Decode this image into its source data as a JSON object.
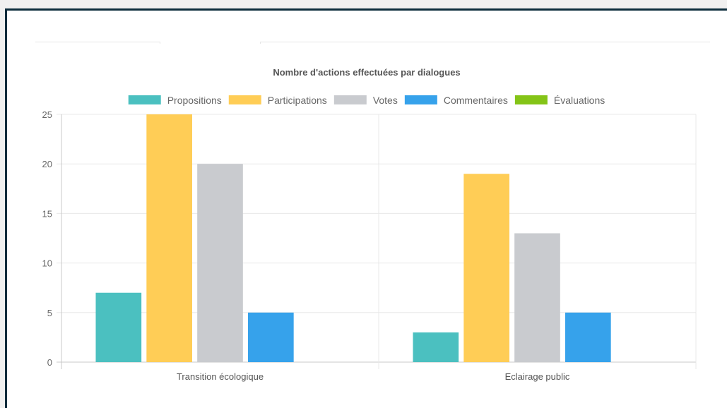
{
  "chart_data": {
    "type": "bar",
    "title": "Nombre d'actions effectuées par dialogues",
    "categories": [
      "Transition écologique",
      "Eclairage public"
    ],
    "series": [
      {
        "name": "Propositions",
        "color": "#4bc0c0",
        "values": [
          7,
          3
        ]
      },
      {
        "name": "Participations",
        "color": "#ffcd56",
        "values": [
          25,
          19
        ]
      },
      {
        "name": "Votes",
        "color": "#c9cbcf",
        "values": [
          20,
          13
        ]
      },
      {
        "name": "Commentaires",
        "color": "#36a2eb",
        "values": [
          5,
          5
        ]
      },
      {
        "name": "Évaluations",
        "color": "#84c417",
        "values": [
          0,
          0
        ]
      }
    ],
    "ylim": [
      0,
      25
    ],
    "yticks": [
      0,
      5,
      10,
      15,
      20,
      25
    ],
    "grid": true,
    "legend_position": "top"
  }
}
